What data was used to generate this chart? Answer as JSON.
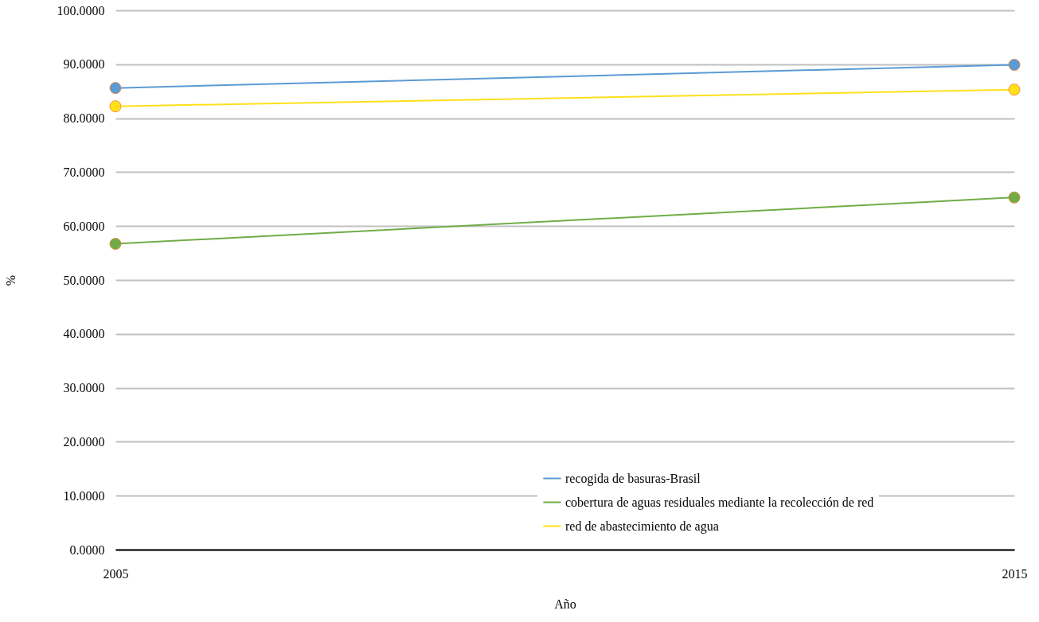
{
  "chart_data": {
    "type": "line",
    "xlabel": "Año",
    "ylabel": "%",
    "x": [
      2005,
      2015
    ],
    "series": [
      {
        "name": "recogida de basuras-Brasil",
        "color": "#5b9bd5",
        "values": [
          85.6,
          89.9
        ]
      },
      {
        "name": "cobertura de aguas residuales mediante la recolección de red",
        "color": "#70ad47",
        "values": [
          56.7,
          65.3
        ]
      },
      {
        "name": "red de abastecimiento de agua",
        "color": "#ffe01a",
        "values": [
          82.2,
          85.3
        ]
      }
    ],
    "xlim": [
      2005,
      2015
    ],
    "xticks": [
      2005,
      2015
    ],
    "ylim": [
      0,
      100
    ],
    "yticks": [
      {
        "value": 0,
        "label": "0.0000"
      },
      {
        "value": 10,
        "label": "10.0000"
      },
      {
        "value": 20,
        "label": "20.0000"
      },
      {
        "value": 30,
        "label": "30.0000"
      },
      {
        "value": 40,
        "label": "40.0000"
      },
      {
        "value": 50,
        "label": "50.0000"
      },
      {
        "value": 60,
        "label": "60.0000"
      },
      {
        "value": 70,
        "label": "70.0000"
      },
      {
        "value": 80,
        "label": "80.0000"
      },
      {
        "value": 90,
        "label": "90.0000"
      },
      {
        "value": 100,
        "label": "100.0000"
      }
    ],
    "grid": "y",
    "legend": "bottom right",
    "marker": "circle",
    "line_style": "solid"
  }
}
